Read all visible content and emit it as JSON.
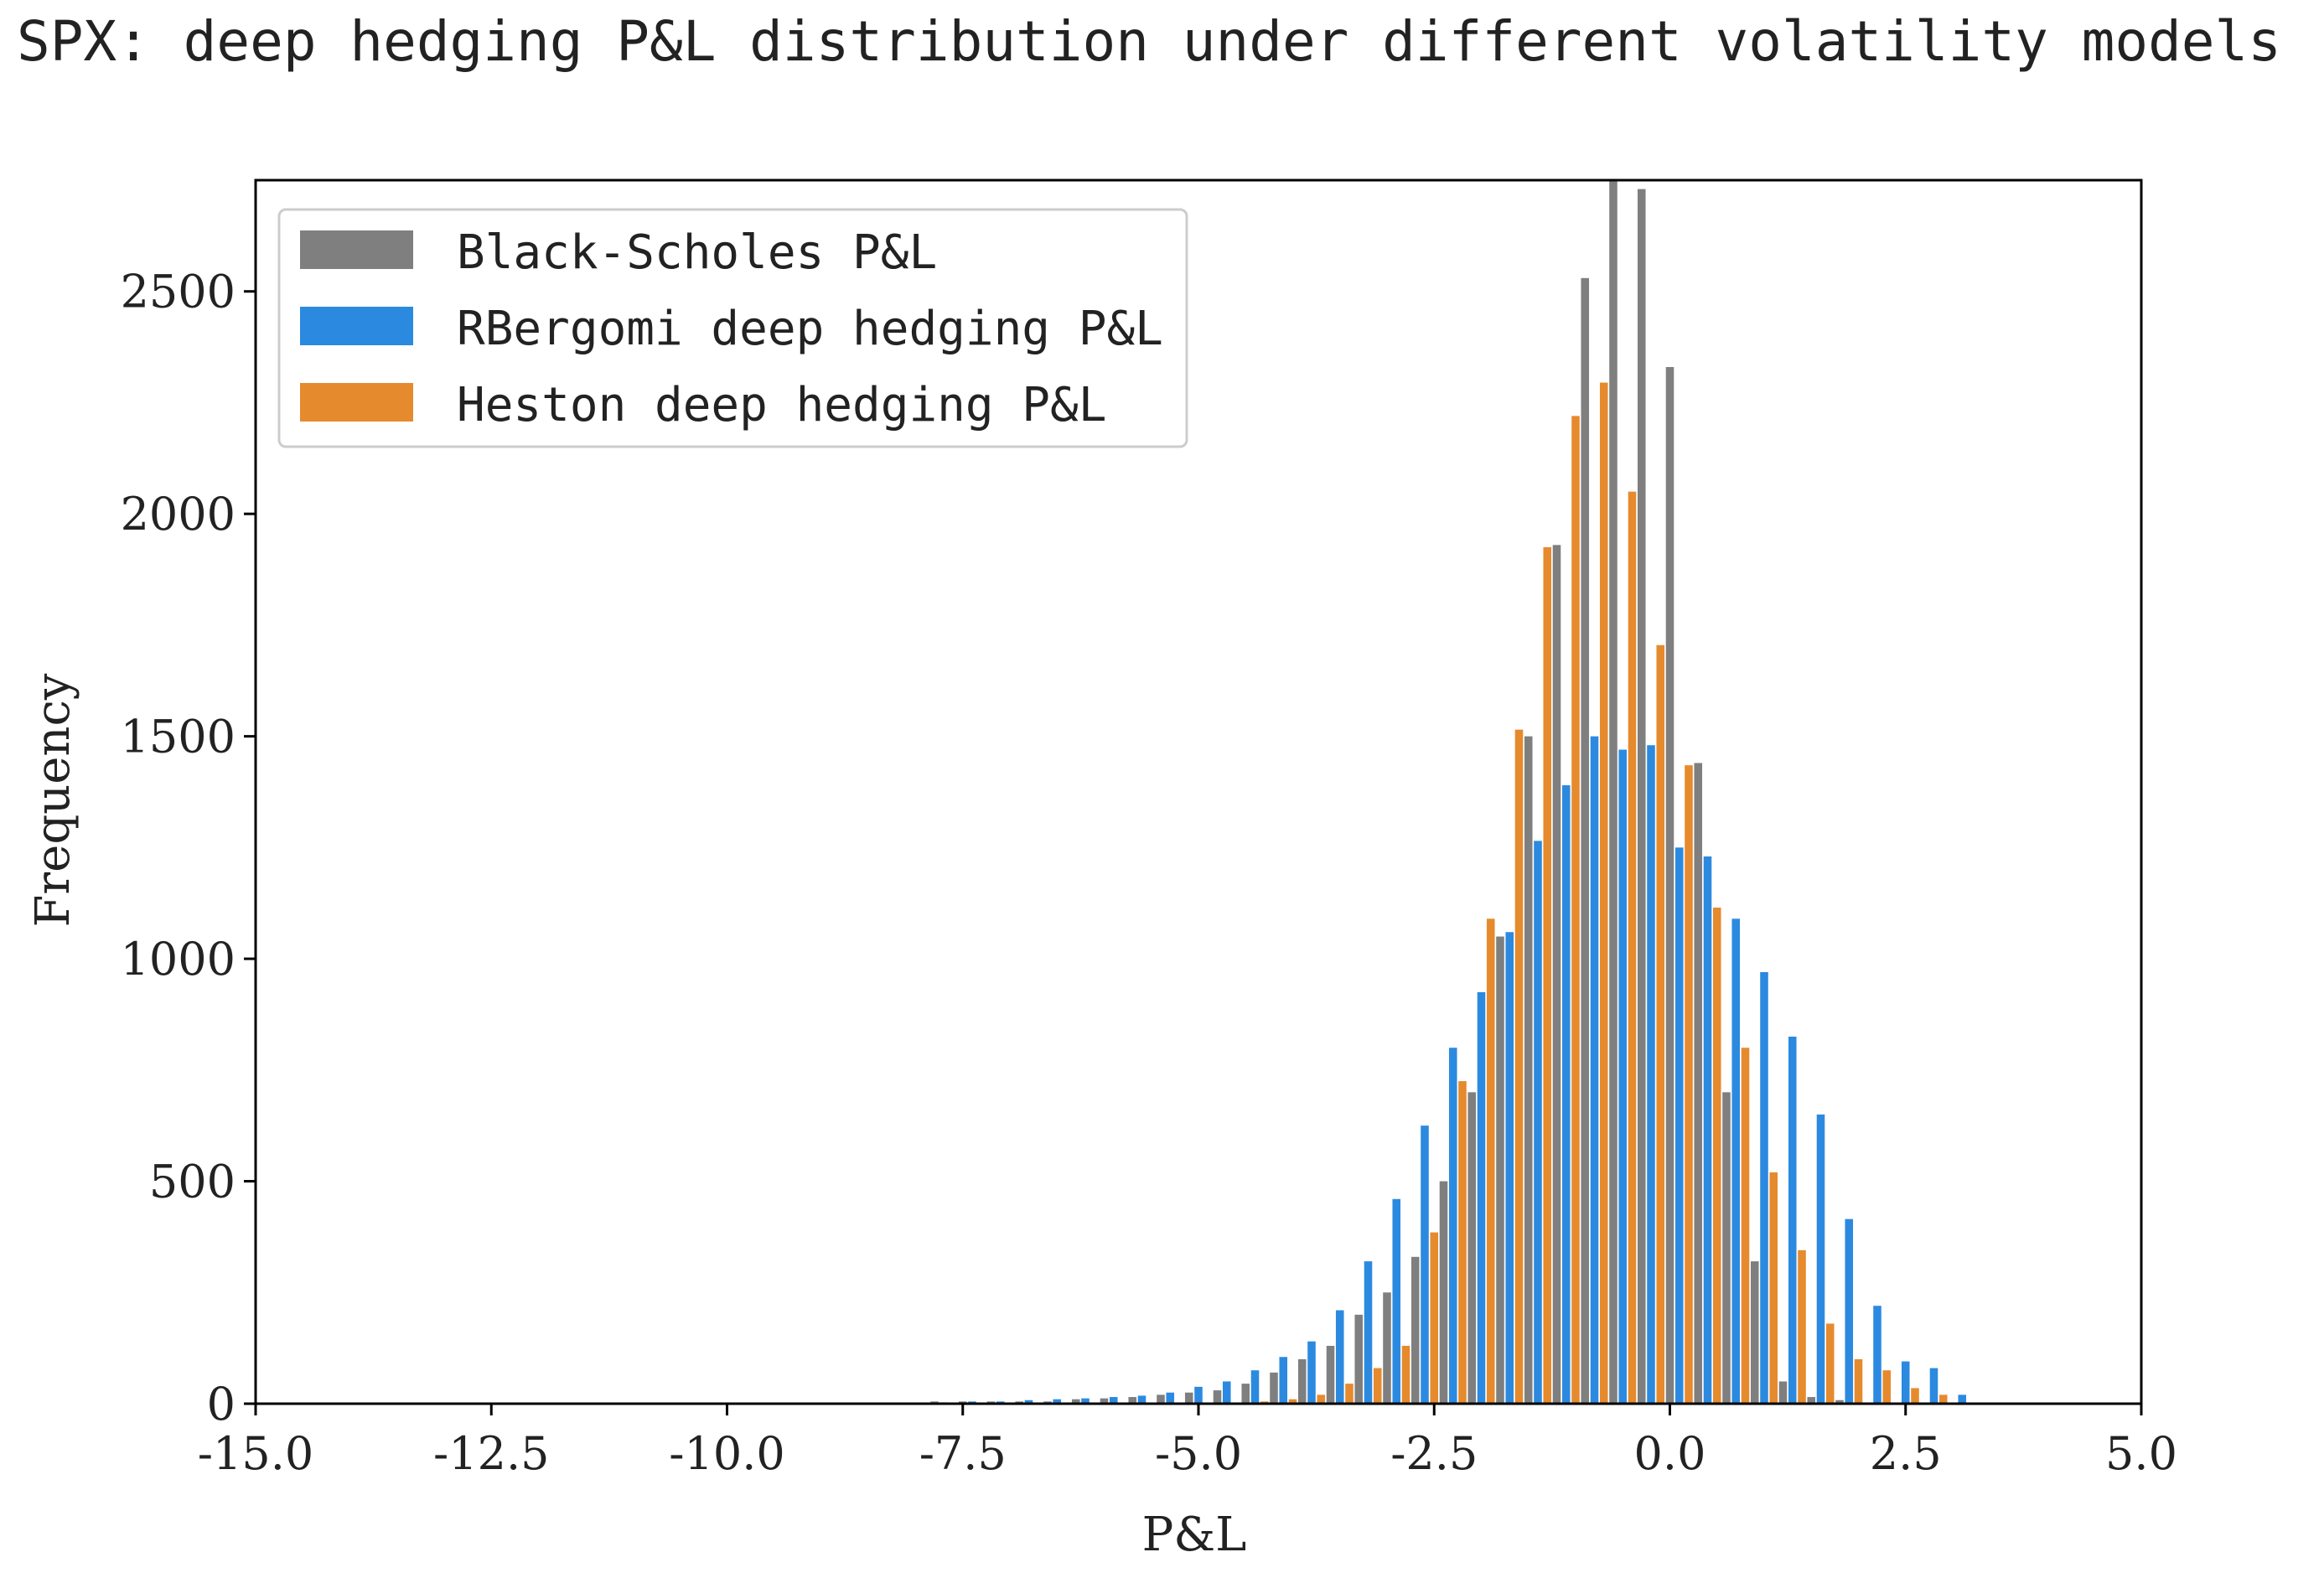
{
  "chart_data": {
    "type": "bar",
    "title": "SPX: deep hedging P&L distribution under different volatility models",
    "xlabel": "P&L",
    "ylabel": "Frequency",
    "xlim": [
      -15.0,
      5.0
    ],
    "ylim": [
      0,
      2750
    ],
    "xticks": [
      -15.0,
      -12.5,
      -10.0,
      -7.5,
      -5.0,
      -2.5,
      0.0,
      2.5,
      5.0
    ],
    "xtick_labels": [
      "-15.0",
      "-12.5",
      "-10.0",
      "-7.5",
      "-5.0",
      "-2.5",
      "0.0",
      "2.5",
      "5.0"
    ],
    "yticks": [
      0,
      500,
      1000,
      1500,
      2000,
      2500
    ],
    "ytick_labels": [
      "0",
      "500",
      "1000",
      "1500",
      "2000",
      "2500"
    ],
    "grid": false,
    "legend_position": "top-left",
    "x": [
      -7.7,
      -7.4,
      -7.1,
      -6.8,
      -6.5,
      -6.2,
      -5.9,
      -5.6,
      -5.3,
      -5.0,
      -4.7,
      -4.4,
      -4.1,
      -3.8,
      -3.5,
      -3.2,
      -2.9,
      -2.6,
      -2.3,
      -2.0,
      -1.7,
      -1.4,
      -1.1,
      -0.8,
      -0.5,
      -0.2,
      0.1,
      0.4,
      0.7,
      1.0,
      1.3,
      1.6,
      1.9,
      2.2,
      2.5,
      2.8,
      3.1,
      3.4,
      3.7
    ],
    "series": [
      {
        "name": "Black-Scholes P&L",
        "color": "#7f7f7f",
        "values": [
          5,
          5,
          5,
          5,
          5,
          10,
          12,
          15,
          20,
          25,
          30,
          45,
          70,
          100,
          130,
          200,
          250,
          330,
          500,
          700,
          1050,
          1500,
          1930,
          2530,
          2750,
          2730,
          2330,
          1440,
          700,
          320,
          50,
          15,
          8,
          0,
          0,
          0,
          0,
          0,
          0
        ]
      },
      {
        "name": "RBergomi deep hedging P&L",
        "color": "#2b8ae0",
        "values": [
          3,
          5,
          5,
          8,
          10,
          12,
          15,
          18,
          25,
          38,
          50,
          75,
          105,
          140,
          210,
          320,
          460,
          625,
          800,
          925,
          1060,
          1265,
          1390,
          1500,
          1470,
          1480,
          1250,
          1230,
          1090,
          970,
          825,
          650,
          415,
          220,
          95,
          80,
          20,
          0,
          0
        ]
      },
      {
        "name": "Heston deep hedging P&L",
        "color": "#e68a2e",
        "values": [
          0,
          0,
          0,
          0,
          0,
          0,
          0,
          0,
          0,
          0,
          0,
          5,
          10,
          20,
          45,
          80,
          130,
          385,
          725,
          1090,
          1515,
          1925,
          2220,
          2295,
          2050,
          1705,
          1435,
          1115,
          800,
          520,
          345,
          180,
          100,
          75,
          35,
          20,
          0,
          0,
          0
        ]
      }
    ]
  }
}
